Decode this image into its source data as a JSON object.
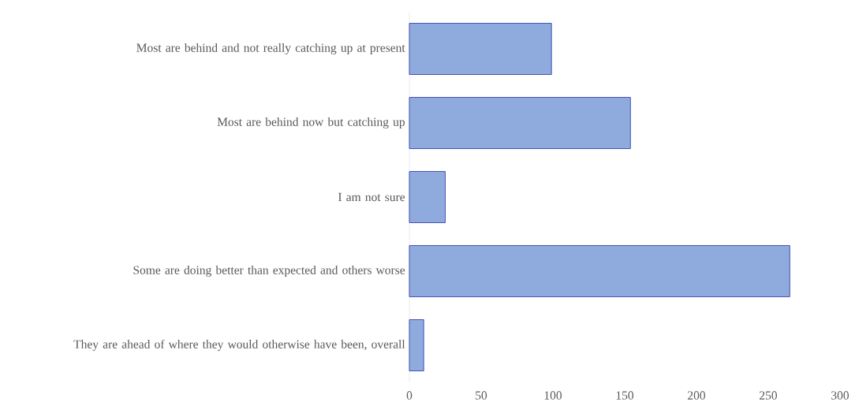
{
  "chart_data": {
    "type": "bar",
    "orientation": "horizontal",
    "categories": [
      "Most are behind and not really catching up at present",
      "Most are behind now but catching up",
      "I am not sure",
      "Some are doing better than expected and others worse",
      "They are ahead of where they would otherwise have been, overall"
    ],
    "values": [
      99,
      154,
      25,
      265,
      10
    ],
    "color": "#8faadc",
    "xlim": [
      0,
      300
    ],
    "xticks": [
      0,
      50,
      100,
      150,
      200,
      250,
      300
    ]
  }
}
